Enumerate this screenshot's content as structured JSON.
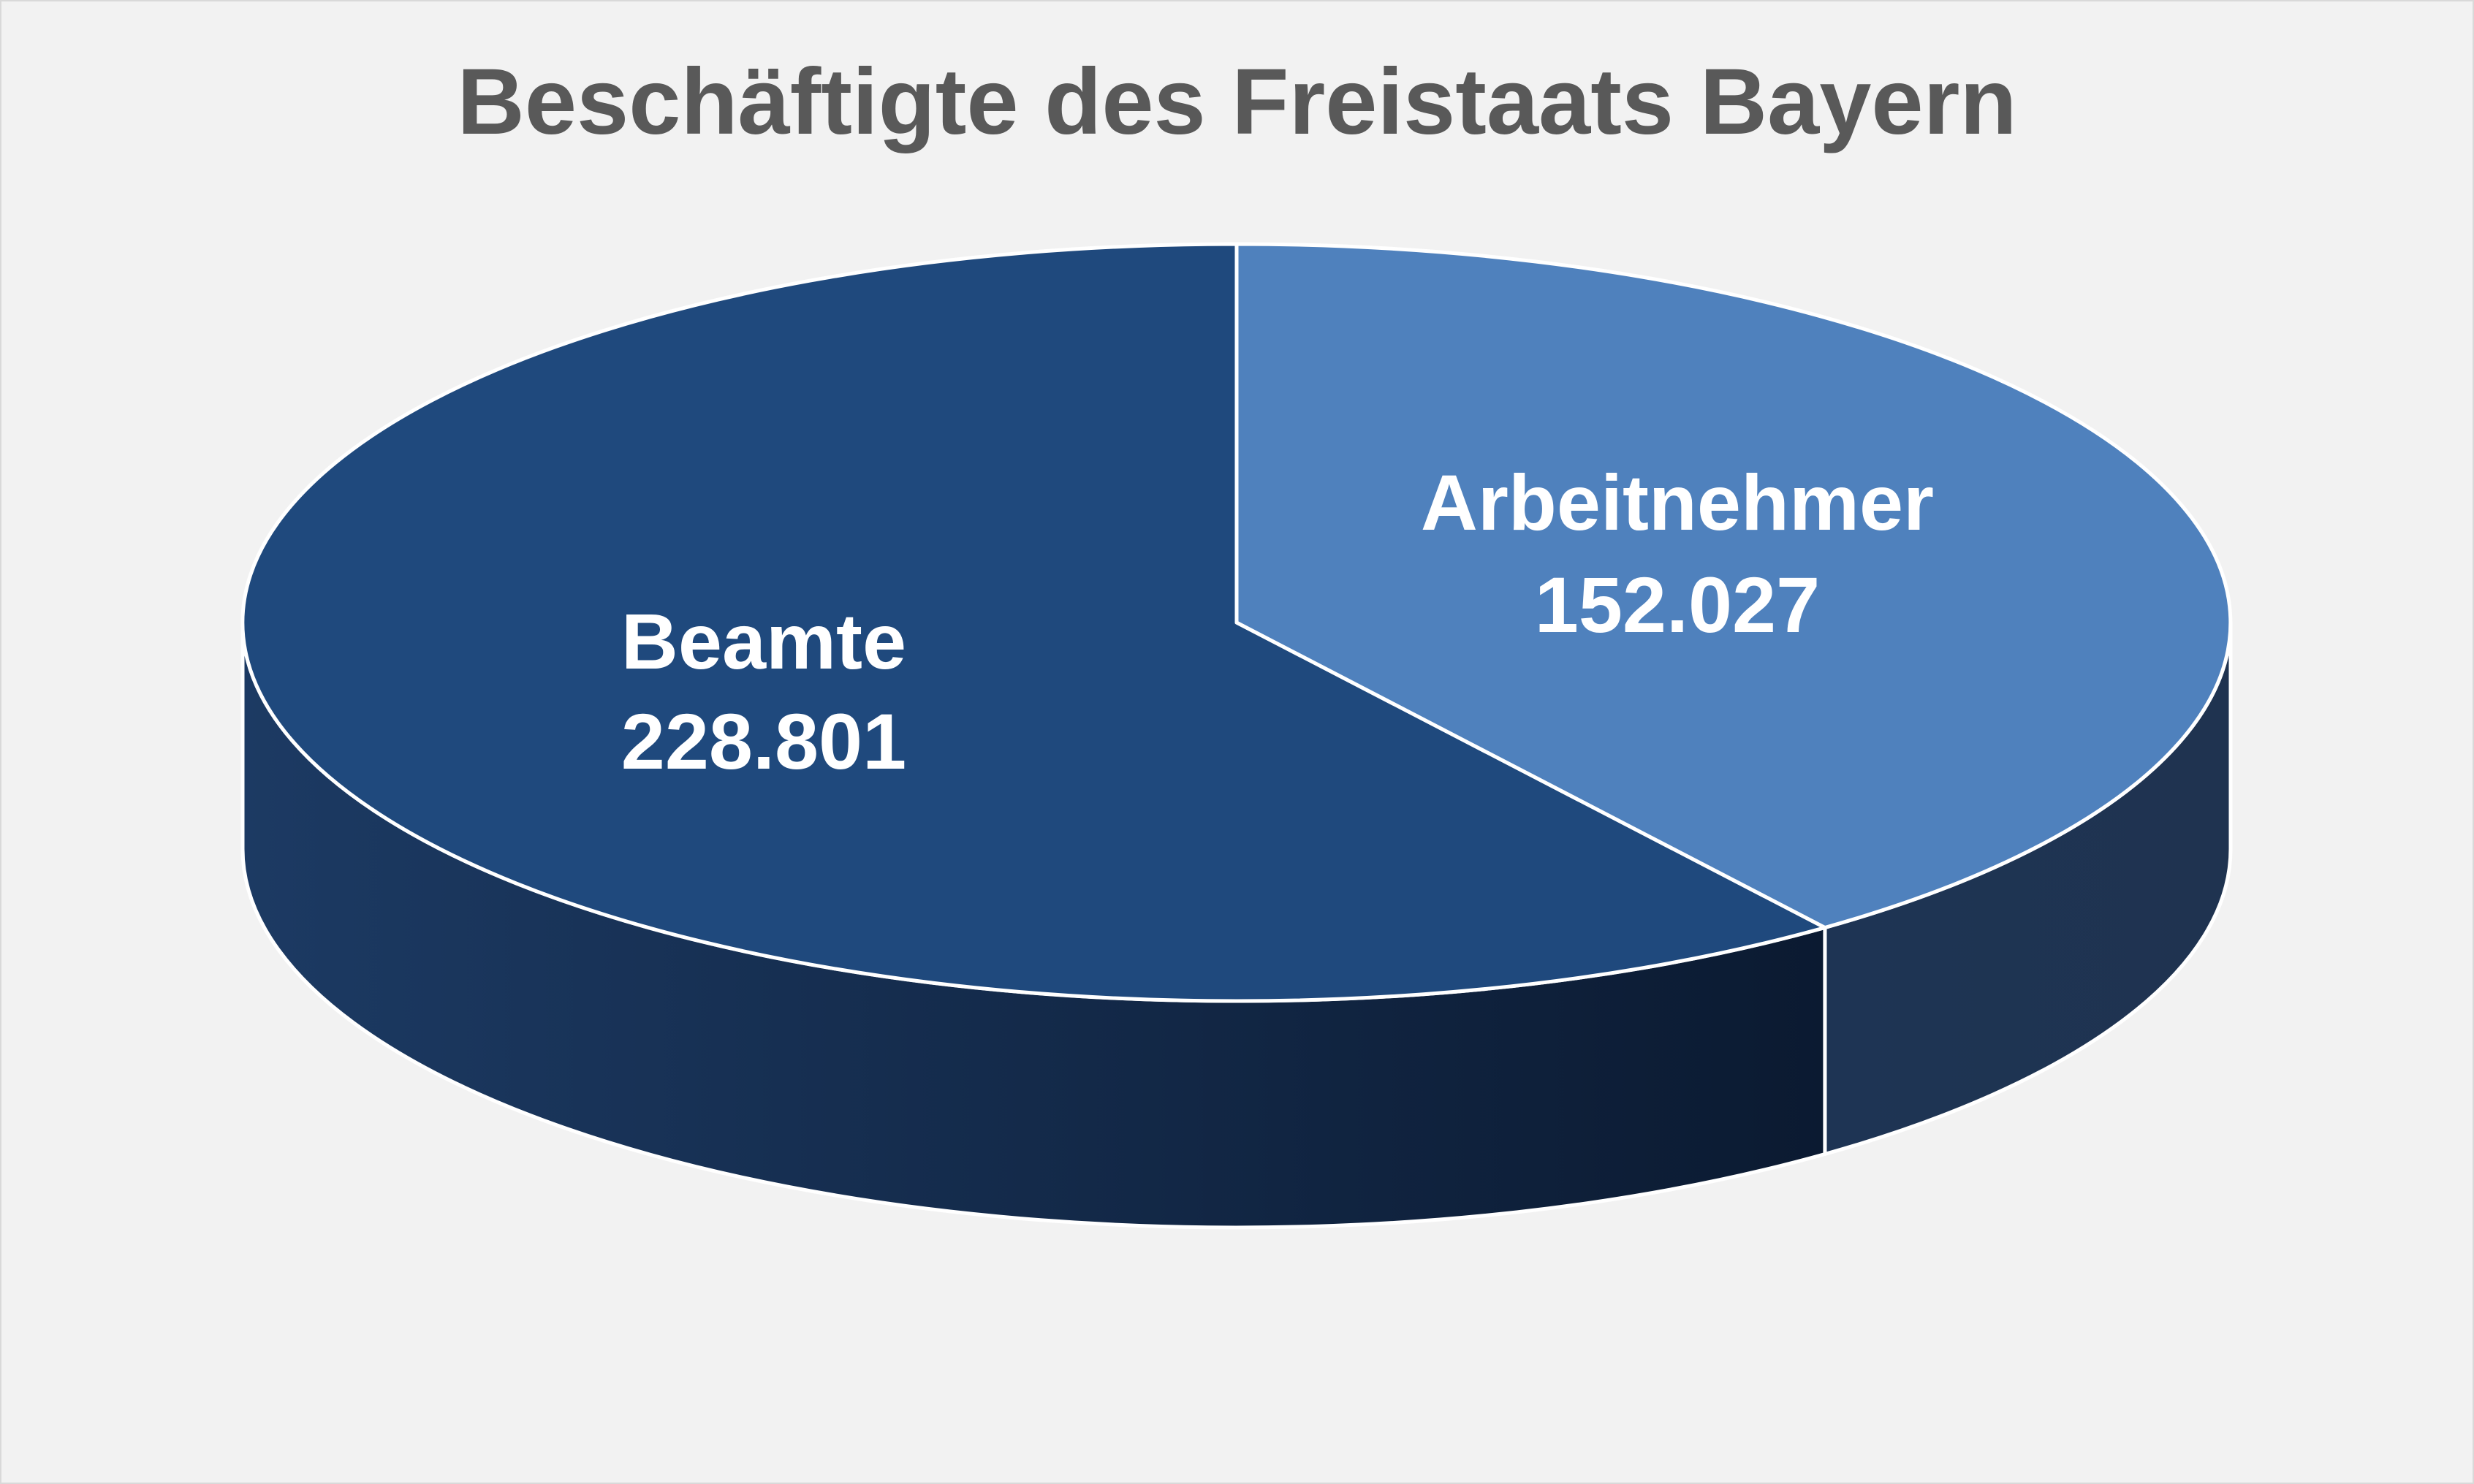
{
  "chart_data": {
    "type": "pie",
    "title": "Beschäftigte des Freistaats Bayern",
    "slices": [
      {
        "label": "Beamte",
        "value": 228801,
        "value_label": "228.801",
        "color": "#1f497d"
      },
      {
        "label": "Arbeitnehmer",
        "value": 152027,
        "value_label": "152.027",
        "color": "#4f81bd"
      }
    ],
    "style": "3d",
    "legend": "none"
  }
}
